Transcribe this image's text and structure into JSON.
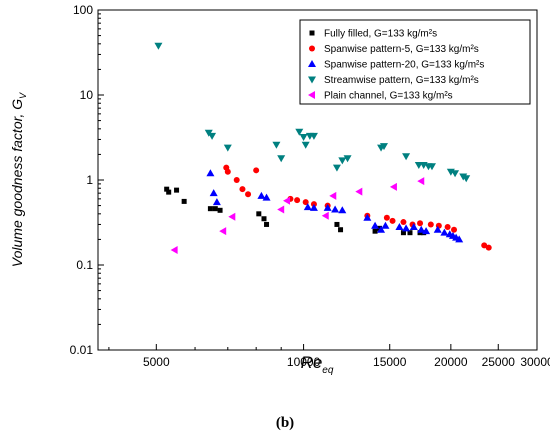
{
  "panel_label": "(b)",
  "chart_data": {
    "type": "scatter",
    "xlabel_main": "Re",
    "xlabel_sub": "eq",
    "ylabel_main": "Volume goodness factor, G",
    "ylabel_sub": "V",
    "xscale": "log",
    "yscale": "log",
    "xlim": [
      3800,
      30000
    ],
    "ylim": [
      0.01,
      100
    ],
    "x_ticks": [
      5000,
      10000,
      15000,
      20000,
      25000,
      30000
    ],
    "x_tick_labels": [
      "5000",
      "10000",
      "15000",
      "20000",
      "25000",
      "30000"
    ],
    "y_ticks": [
      0.01,
      0.1,
      1,
      10,
      100
    ],
    "y_tick_labels": [
      "0.01",
      "0.1",
      "1",
      "10",
      "100"
    ],
    "grid": false,
    "legend_position": "top-right",
    "series": [
      {
        "name": "Fully filled, G=133 kg/m²s",
        "marker": "square",
        "color": "#000000",
        "points": [
          [
            5250,
            0.78
          ],
          [
            5300,
            0.72
          ],
          [
            5500,
            0.76
          ],
          [
            5700,
            0.56
          ],
          [
            6450,
            0.46
          ],
          [
            6600,
            0.46
          ],
          [
            6750,
            0.44
          ],
          [
            8100,
            0.4
          ],
          [
            8300,
            0.35
          ],
          [
            8400,
            0.3
          ],
          [
            11700,
            0.3
          ],
          [
            11900,
            0.26
          ],
          [
            14000,
            0.25
          ],
          [
            14300,
            0.27
          ],
          [
            16000,
            0.24
          ],
          [
            16500,
            0.24
          ],
          [
            17300,
            0.24
          ],
          [
            17600,
            0.24
          ]
        ]
      },
      {
        "name": "Spanwise pattern-5, G=133 kg/m²s",
        "marker": "circle",
        "color": "#ff0000",
        "points": [
          [
            6950,
            1.4
          ],
          [
            7000,
            1.25
          ],
          [
            7300,
            1.0
          ],
          [
            7500,
            0.78
          ],
          [
            7700,
            0.68
          ],
          [
            8000,
            1.3
          ],
          [
            9400,
            0.6
          ],
          [
            9700,
            0.58
          ],
          [
            10100,
            0.55
          ],
          [
            10500,
            0.52
          ],
          [
            11200,
            0.5
          ],
          [
            13500,
            0.38
          ],
          [
            14800,
            0.36
          ],
          [
            15200,
            0.33
          ],
          [
            16000,
            0.32
          ],
          [
            16700,
            0.3
          ],
          [
            17300,
            0.31
          ],
          [
            18200,
            0.3
          ],
          [
            18900,
            0.29
          ],
          [
            19700,
            0.28
          ],
          [
            20300,
            0.26
          ],
          [
            23400,
            0.17
          ],
          [
            23900,
            0.16
          ]
        ]
      },
      {
        "name": "Spanwise pattern-20, G=133 kg/m²s",
        "marker": "triangle-up",
        "color": "#0000ff",
        "points": [
          [
            6450,
            1.2
          ],
          [
            6550,
            0.7
          ],
          [
            6650,
            0.55
          ],
          [
            8200,
            0.65
          ],
          [
            8400,
            0.62
          ],
          [
            10200,
            0.48
          ],
          [
            10500,
            0.47
          ],
          [
            11200,
            0.47
          ],
          [
            11600,
            0.45
          ],
          [
            12000,
            0.44
          ],
          [
            13500,
            0.36
          ],
          [
            14000,
            0.29
          ],
          [
            14400,
            0.26
          ],
          [
            14700,
            0.29
          ],
          [
            15700,
            0.28
          ],
          [
            16200,
            0.27
          ],
          [
            16800,
            0.28
          ],
          [
            17400,
            0.26
          ],
          [
            17800,
            0.25
          ],
          [
            18800,
            0.26
          ],
          [
            19400,
            0.24
          ],
          [
            19900,
            0.23
          ],
          [
            20200,
            0.22
          ],
          [
            20500,
            0.21
          ],
          [
            20800,
            0.2
          ]
        ]
      },
      {
        "name": "Streamwise pattern, G=133 kg/m²s",
        "marker": "triangle-down",
        "color": "#008080",
        "points": [
          [
            5050,
            38.0
          ],
          [
            6400,
            3.6
          ],
          [
            6500,
            3.3
          ],
          [
            7000,
            2.4
          ],
          [
            8800,
            2.6
          ],
          [
            9000,
            1.8
          ],
          [
            9800,
            3.7
          ],
          [
            10000,
            3.2
          ],
          [
            10300,
            3.3
          ],
          [
            10500,
            3.3
          ],
          [
            10100,
            2.6
          ],
          [
            11700,
            1.4
          ],
          [
            12000,
            1.7
          ],
          [
            12300,
            1.8
          ],
          [
            14400,
            2.4
          ],
          [
            14600,
            2.5
          ],
          [
            16200,
            1.9
          ],
          [
            17200,
            1.5
          ],
          [
            17600,
            1.5
          ],
          [
            18000,
            1.45
          ],
          [
            18300,
            1.45
          ],
          [
            20000,
            1.25
          ],
          [
            20400,
            1.2
          ],
          [
            21200,
            1.1
          ],
          [
            21500,
            1.05
          ]
        ]
      },
      {
        "name": "Plain channel, G=133 kg/m²s",
        "marker": "triangle-left",
        "color": "#ff00ff",
        "points": [
          [
            5450,
            0.15
          ],
          [
            6850,
            0.25
          ],
          [
            7150,
            0.37
          ],
          [
            9000,
            0.45
          ],
          [
            9250,
            0.57
          ],
          [
            11100,
            0.38
          ],
          [
            11500,
            0.65
          ],
          [
            13000,
            0.73
          ],
          [
            15300,
            0.83
          ],
          [
            17400,
            0.97
          ]
        ]
      }
    ]
  }
}
